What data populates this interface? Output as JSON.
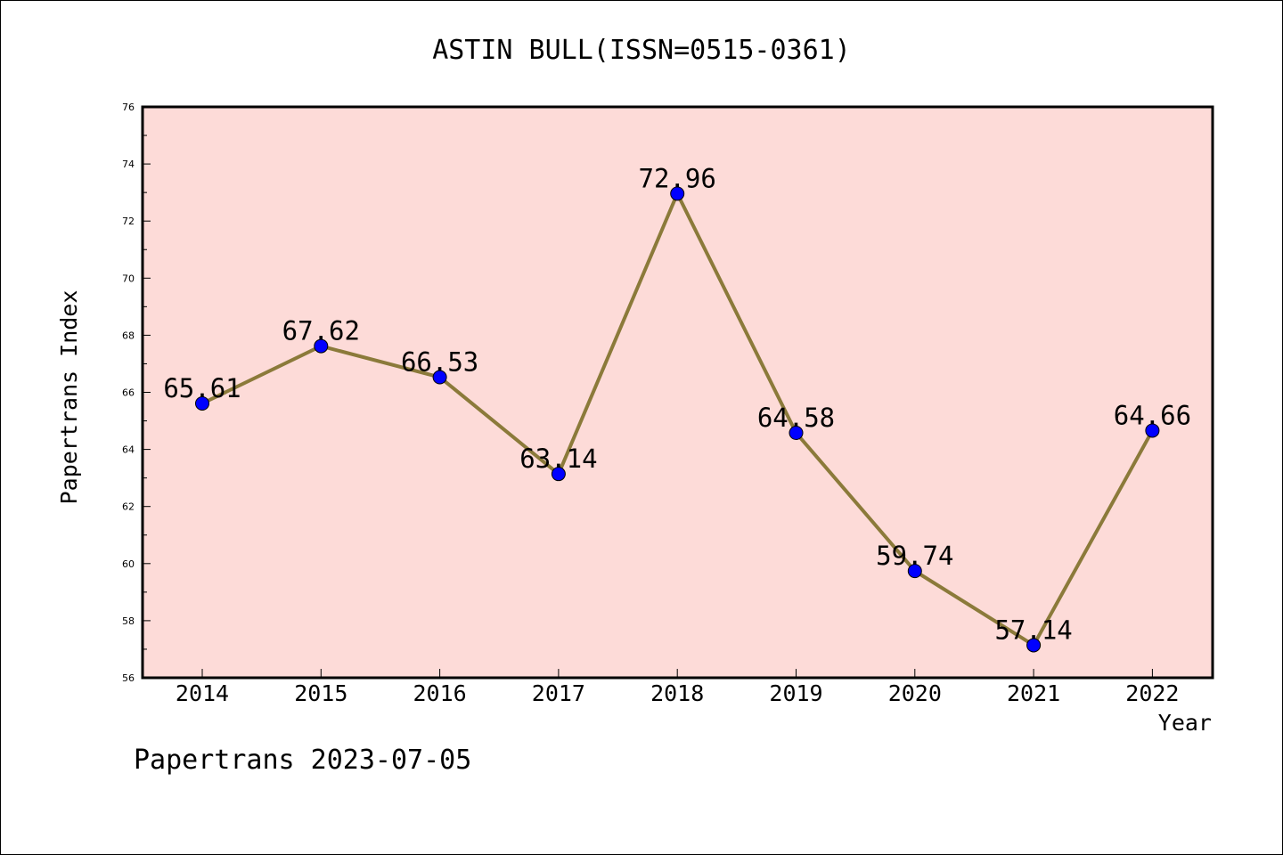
{
  "chart_data": {
    "type": "line",
    "title": "ASTIN BULL(ISSN=0515-0361)",
    "xlabel": "Year",
    "ylabel": "Papertrans Index",
    "categories": [
      "2014",
      "2015",
      "2016",
      "2017",
      "2018",
      "2019",
      "2020",
      "2021",
      "2022"
    ],
    "series": [
      {
        "values": [
          65.61,
          67.62,
          66.53,
          63.14,
          72.96,
          64.58,
          59.74,
          57.14,
          64.66
        ],
        "labels": [
          "65.61",
          "67.62",
          "66.53",
          "63.14",
          "72.96",
          "64.58",
          "59.74",
          "57.14",
          "64.66"
        ]
      }
    ],
    "ylim": [
      56,
      76
    ],
    "yticks": [
      "56",
      "58",
      "60",
      "62",
      "64",
      "66",
      "68",
      "70",
      "72",
      "74",
      "76"
    ],
    "grid": false,
    "legend": "none",
    "colors": {
      "plot_background": "#fddbd8",
      "line": "#8b7a3a",
      "marker": "#0000ff"
    }
  },
  "footer": {
    "text": "Papertrans 2023-07-05"
  }
}
